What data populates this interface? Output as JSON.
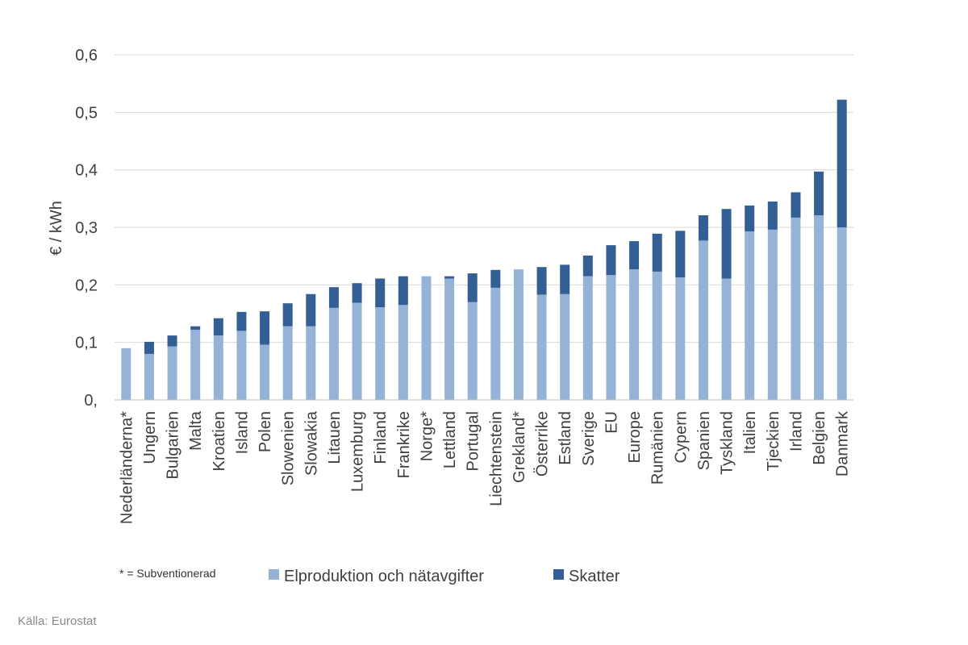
{
  "chart_data": {
    "type": "bar",
    "stacked": true,
    "ylabel": "€ / kWh",
    "ylim": [
      0,
      0.6
    ],
    "yticks": [
      0,
      0.1,
      0.2,
      0.3,
      0.4,
      0.5,
      0.6
    ],
    "ytick_labels": [
      "0,",
      "0,1",
      "0,2",
      "0,3",
      "0,4",
      "0,5",
      "0,6"
    ],
    "grid": true,
    "legend_position": "bottom",
    "categories": [
      "Nederländerna*",
      "Ungern",
      "Bulgarien",
      "Malta",
      "Kroatien",
      "Island",
      "Polen",
      "Slowenien",
      "Slowakia",
      "Litauen",
      "Luxemburg",
      "Finland",
      "Frankrike",
      "Norge*",
      "Lettland",
      "Portugal",
      "Liechtenstein",
      "Grekland*",
      "Österrike",
      "Estland",
      "Sverige",
      "EU",
      "Europe",
      "Rumänien",
      "Cypern",
      "Spanien",
      "Tyskland",
      "Italien",
      "Tjeckien",
      "Irland",
      "Belgien",
      "Danmark"
    ],
    "series": [
      {
        "name": "Elproduktion och nätavgifter",
        "color": "#95b3d7",
        "values": [
          0.09,
          0.08,
          0.093,
          0.122,
          0.112,
          0.12,
          0.096,
          0.128,
          0.128,
          0.16,
          0.169,
          0.161,
          0.165,
          0.215,
          0.211,
          0.17,
          0.195,
          0.227,
          0.183,
          0.184,
          0.215,
          0.217,
          0.227,
          0.223,
          0.213,
          0.277,
          0.211,
          0.293,
          0.296,
          0.317,
          0.321,
          0.3
        ]
      },
      {
        "name": "Skatter",
        "color": "#335f95",
        "values": [
          0.0,
          0.021,
          0.019,
          0.006,
          0.03,
          0.033,
          0.058,
          0.04,
          0.056,
          0.036,
          0.034,
          0.05,
          0.05,
          0.0,
          0.004,
          0.05,
          0.031,
          0.0,
          0.048,
          0.051,
          0.036,
          0.052,
          0.049,
          0.066,
          0.081,
          0.044,
          0.121,
          0.045,
          0.049,
          0.044,
          0.076,
          0.222
        ]
      }
    ]
  },
  "footnote": "* = Subventionerad",
  "source": "Källa: Eurostat"
}
